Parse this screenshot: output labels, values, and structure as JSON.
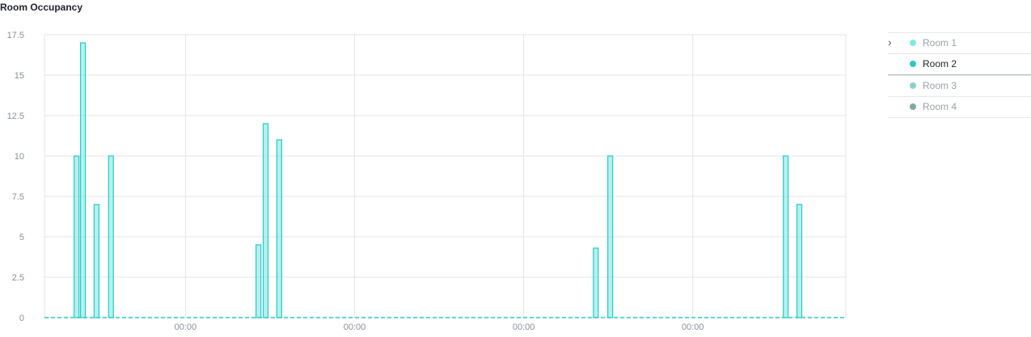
{
  "title": "Room Occupancy",
  "legend": {
    "items": [
      {
        "label": "Room 1",
        "color": "#7eeae6",
        "active": false
      },
      {
        "label": "Room 2",
        "color": "#2cc9c3",
        "active": true
      },
      {
        "label": "Room 3",
        "color": "#8ecfcb",
        "active": false
      },
      {
        "label": "Room 4",
        "color": "#7fa9a7",
        "active": false
      }
    ]
  },
  "chart_data": {
    "type": "bar",
    "title": "Room Occupancy",
    "xlabel": "",
    "ylabel": "",
    "ylim": [
      0,
      17.5
    ],
    "yticks": [
      "0",
      "2.5",
      "5",
      "7.5",
      "10",
      "12.5",
      "15",
      "17.5"
    ],
    "xticks": [
      "00:00",
      "00:00",
      "00:00",
      "00:00"
    ],
    "grid": true,
    "series": [
      {
        "name": "Room 1",
        "color": "#7eeae6",
        "bars": [
          {
            "x": 0.04,
            "y": 10
          },
          {
            "x": 0.048,
            "y": 17
          },
          {
            "x": 0.065,
            "y": 7
          },
          {
            "x": 0.083,
            "y": 10
          },
          {
            "x": 0.267,
            "y": 4.5
          },
          {
            "x": 0.276,
            "y": 12
          },
          {
            "x": 0.293,
            "y": 11
          },
          {
            "x": 0.688,
            "y": 4.3
          },
          {
            "x": 0.706,
            "y": 10
          },
          {
            "x": 0.925,
            "y": 10
          },
          {
            "x": 0.942,
            "y": 7
          }
        ]
      }
    ]
  }
}
